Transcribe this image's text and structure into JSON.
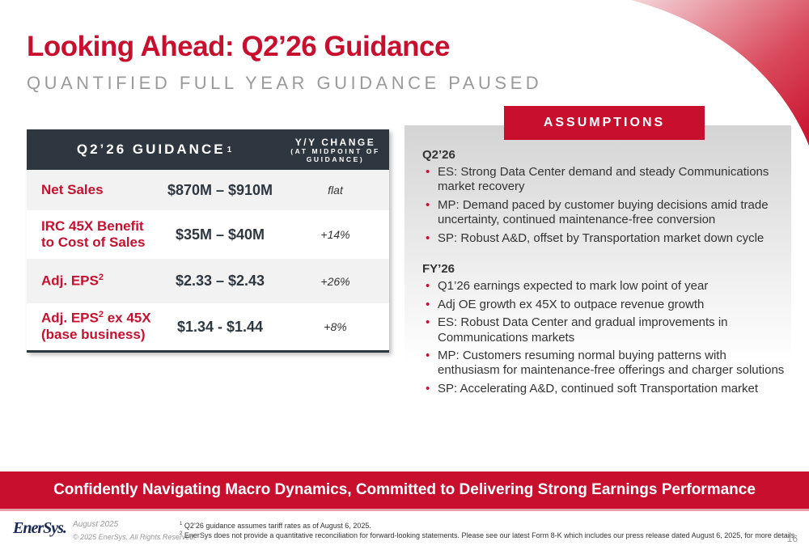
{
  "title": "Looking Ahead: Q2’26 Guidance",
  "subtitle": "QUANTIFIED FULL YEAR GUIDANCE PAUSED",
  "table": {
    "header_guidance": "Q2’26 GUIDANCE",
    "header_guidance_sup": "1",
    "header_change_line1": "Y/Y CHANGE",
    "header_change_line2": "(AT MIDPOINT OF GUIDANCE)",
    "rows": [
      {
        "label": "Net Sales",
        "value": "$870M – $910M",
        "change": "flat"
      },
      {
        "label_line1": "IRC 45X Benefit",
        "label_line2": "to Cost of Sales",
        "value": "$35M – $40M",
        "change": "+14%"
      },
      {
        "label": "Adj. EPS",
        "label_sup": "2",
        "value": "$2.33 – $2.43",
        "change": "+26%"
      },
      {
        "label_line1_pre": "Adj. EPS",
        "label_sup": "2",
        "label_line1_post": " ex 45X",
        "label_line2": "(base business)",
        "value": "$1.34 - $1.44",
        "change": "+8%"
      }
    ]
  },
  "assumptions": {
    "header": "ASSUMPTIONS",
    "q2_title": "Q2’26",
    "q2_items": [
      "ES: Strong Data Center demand and steady Communications market recovery",
      "MP: Demand paced by customer buying decisions amid trade uncertainty, continued maintenance-free conversion",
      "SP: Robust A&D, offset by Transportation market down cycle"
    ],
    "fy_title": "FY’26",
    "fy_items": [
      "Q1’26 earnings expected to mark low point of year",
      "Adj OE growth ex 45X to outpace revenue growth",
      "ES: Robust Data Center and gradual improvements in Communications markets",
      "MP: Customers resuming normal buying patterns with enthusiasm for maintenance-free offerings and charger solutions",
      "SP: Accelerating A&D, continued soft Transportation market"
    ]
  },
  "banner": "Confidently Navigating Macro Dynamics, Committed to Delivering Strong Earnings Performance",
  "footer": {
    "logo": "EnerSys.",
    "date": "August 2025",
    "copyright": "© 2025 EnerSys. All Rights Reserved.",
    "footnote1_num": "1",
    "footnote1": "Q2’26 guidance assumes tariff rates as of August 6, 2025.",
    "footnote2_num": "2",
    "footnote2": "EnerSys does not provide a quantitative reconciliation for forward-looking statements. Please see our latest Form 8-K which includes our press release dated August 6, 2025, for more details.",
    "page": "16"
  },
  "colors": {
    "accent": "#c8102e",
    "dark": "#2e3740",
    "muted": "#9a9a9a"
  }
}
